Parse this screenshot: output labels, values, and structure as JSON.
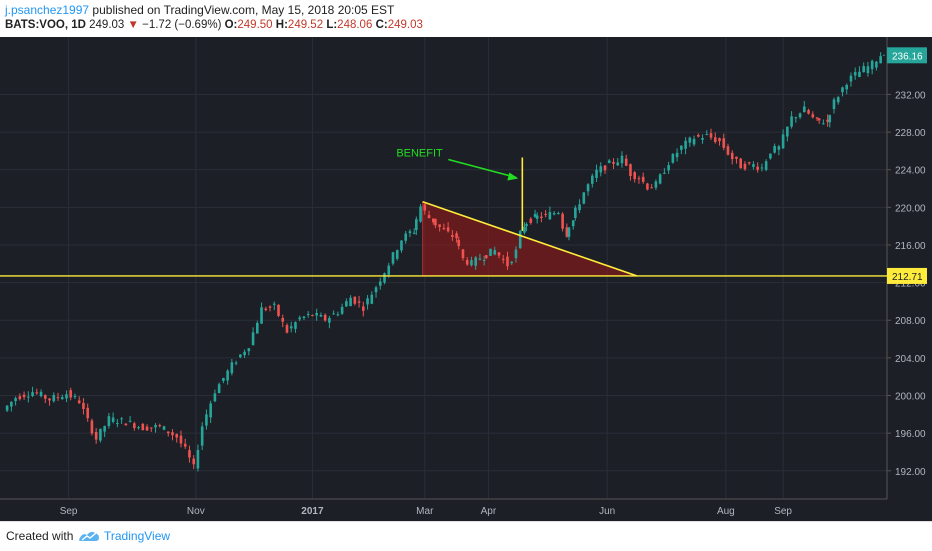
{
  "header": {
    "author": "j.psanchez1997",
    "published_text": "published on TradingView.com, May 15, 2018 20:05 EST",
    "symbol": "BATS:VOO, 1D",
    "last": "249.03",
    "change_arrow": "▼",
    "change": "−1.72 (−0.69%)",
    "o_label": "O:",
    "o_value": "249.50",
    "h_label": "H:",
    "h_value": "249.52",
    "l_label": "L:",
    "l_value": "248.06",
    "c_label": "C:",
    "c_value": "249.03"
  },
  "footer": {
    "created_with": "Created with",
    "brand": "TradingView"
  },
  "colors": {
    "background": "#1c1f26",
    "up": "#26a69a",
    "down": "#ef5350",
    "axis_text": "#b2b5be",
    "yellow_line": "#ffeb3b",
    "triangle_fill": "#8b1a1a",
    "arrow_green": "#22dd22",
    "price_badge": "#26a69a"
  },
  "chart_data": {
    "type": "candlestick",
    "title": "",
    "ylim": [
      189,
      238
    ],
    "y_ticks": [
      "192.00",
      "196.00",
      "200.00",
      "204.00",
      "208.00",
      "212.00",
      "216.00",
      "220.00",
      "224.00",
      "228.00",
      "232.00"
    ],
    "y_tick_values": [
      192,
      196,
      200,
      204,
      208,
      212,
      216,
      220,
      224,
      228,
      232
    ],
    "x_ticks": [
      "Sep",
      "Nov",
      "2017",
      "Mar",
      "Apr",
      "Jun",
      "Aug",
      "Sep"
    ],
    "x_tick_days": [
      30,
      90,
      145,
      198,
      228,
      284,
      340,
      367
    ],
    "x_range": [
      0,
      416
    ],
    "grid": true,
    "horizontal_level": {
      "value": 212.71,
      "label": "212.71"
    },
    "last_price": {
      "value": 236.16,
      "label": "236.16"
    },
    "annotation": {
      "text": "BENEFIT",
      "color": "#22dd22"
    },
    "triangle": {
      "top_day": 197,
      "top_price": 220.6,
      "end_day": 298,
      "base_price": 212.71
    },
    "benefit_line": {
      "day": 244,
      "from": 217.5,
      "to": 225.3
    },
    "series": [
      {
        "day": 0,
        "price": 198.4
      },
      {
        "day": 6,
        "price": 199.8
      },
      {
        "day": 14,
        "price": 200.4
      },
      {
        "day": 22,
        "price": 199.6
      },
      {
        "day": 30,
        "price": 200.2
      },
      {
        "day": 36,
        "price": 199.4
      },
      {
        "day": 40,
        "price": 197.3
      },
      {
        "day": 44,
        "price": 195.4
      },
      {
        "day": 50,
        "price": 197.5
      },
      {
        "day": 58,
        "price": 197.2
      },
      {
        "day": 66,
        "price": 196.6
      },
      {
        "day": 74,
        "price": 196.7
      },
      {
        "day": 82,
        "price": 195.6
      },
      {
        "day": 86,
        "price": 194.2
      },
      {
        "day": 90,
        "price": 192.3
      },
      {
        "day": 94,
        "price": 196.8
      },
      {
        "day": 100,
        "price": 200.5
      },
      {
        "day": 108,
        "price": 203.2
      },
      {
        "day": 116,
        "price": 205.4
      },
      {
        "day": 122,
        "price": 209.2
      },
      {
        "day": 128,
        "price": 209.4
      },
      {
        "day": 134,
        "price": 206.8
      },
      {
        "day": 140,
        "price": 208.2
      },
      {
        "day": 146,
        "price": 208.6
      },
      {
        "day": 152,
        "price": 208.1
      },
      {
        "day": 158,
        "price": 208.9
      },
      {
        "day": 164,
        "price": 210.4
      },
      {
        "day": 170,
        "price": 209.4
      },
      {
        "day": 176,
        "price": 211.6
      },
      {
        "day": 182,
        "price": 214.0
      },
      {
        "day": 188,
        "price": 216.6
      },
      {
        "day": 193,
        "price": 217.5
      },
      {
        "day": 197,
        "price": 220.1
      },
      {
        "day": 202,
        "price": 218.6
      },
      {
        "day": 208,
        "price": 217.5
      },
      {
        "day": 213,
        "price": 216.8
      },
      {
        "day": 217,
        "price": 214.5
      },
      {
        "day": 221,
        "price": 214.0
      },
      {
        "day": 226,
        "price": 214.8
      },
      {
        "day": 232,
        "price": 215.4
      },
      {
        "day": 238,
        "price": 213.9
      },
      {
        "day": 242,
        "price": 215.3
      },
      {
        "day": 245,
        "price": 218.1
      },
      {
        "day": 250,
        "price": 218.9
      },
      {
        "day": 256,
        "price": 219.1
      },
      {
        "day": 262,
        "price": 219.6
      },
      {
        "day": 265,
        "price": 217.2
      },
      {
        "day": 268,
        "price": 218.6
      },
      {
        "day": 274,
        "price": 221.6
      },
      {
        "day": 280,
        "price": 223.8
      },
      {
        "day": 286,
        "price": 224.6
      },
      {
        "day": 292,
        "price": 225.2
      },
      {
        "day": 296,
        "price": 223.6
      },
      {
        "day": 300,
        "price": 223.2
      },
      {
        "day": 304,
        "price": 222.2
      },
      {
        "day": 308,
        "price": 222.4
      },
      {
        "day": 314,
        "price": 224.8
      },
      {
        "day": 320,
        "price": 226.4
      },
      {
        "day": 326,
        "price": 227.4
      },
      {
        "day": 332,
        "price": 227.6
      },
      {
        "day": 338,
        "price": 227.0
      },
      {
        "day": 344,
        "price": 225.2
      },
      {
        "day": 348,
        "price": 224.4
      },
      {
        "day": 354,
        "price": 224.5
      },
      {
        "day": 358,
        "price": 224.2
      },
      {
        "day": 362,
        "price": 226.0
      },
      {
        "day": 366,
        "price": 226.3
      },
      {
        "day": 372,
        "price": 229.5
      },
      {
        "day": 378,
        "price": 230.4
      },
      {
        "day": 383,
        "price": 229.2
      },
      {
        "day": 388,
        "price": 229.1
      },
      {
        "day": 392,
        "price": 231.2
      },
      {
        "day": 398,
        "price": 233.4
      },
      {
        "day": 404,
        "price": 234.4
      },
      {
        "day": 410,
        "price": 235.2
      },
      {
        "day": 414,
        "price": 236.2
      }
    ]
  }
}
